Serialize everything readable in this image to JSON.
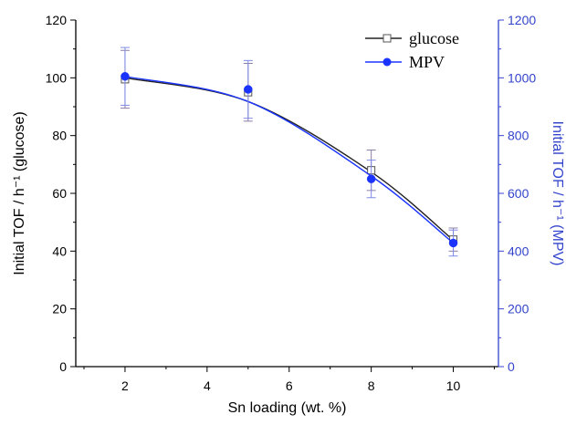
{
  "chart_data": {
    "type": "line",
    "xlabel": "Sn loading (wt. %)",
    "ylabel_left": "Initial TOF / h⁻¹ (glucose)",
    "ylabel_right": "Initial TOF / h⁻¹ (MPV)",
    "xlim": [
      0.8,
      11.1
    ],
    "x_ticks": [
      2,
      4,
      6,
      8,
      10
    ],
    "x_tick_labels": [
      "2",
      "4",
      "6",
      "8",
      "10"
    ],
    "ylim_left": [
      0,
      120
    ],
    "y_ticks_left": [
      0,
      20,
      40,
      60,
      80,
      100,
      120
    ],
    "y_tick_labels_left": [
      "0",
      "20",
      "40",
      "60",
      "80",
      "100",
      "120"
    ],
    "ylim_right": [
      0,
      1200
    ],
    "y_ticks_right": [
      0,
      200,
      400,
      600,
      800,
      1000,
      1200
    ],
    "y_tick_labels_right": [
      "0",
      "200",
      "400",
      "600",
      "800",
      "1000",
      "1200"
    ],
    "right_axis_color": "#3344cc",
    "grid": false,
    "legend_position": "top-right",
    "series": [
      {
        "name": "glucose",
        "axis": "left",
        "marker": "open-square",
        "color": "#222222",
        "x": [
          2,
          5,
          8,
          10
        ],
        "y": [
          99.5,
          95.0,
          68.0,
          44.0
        ],
        "err": [
          10.0,
          10.0,
          7.0,
          4.0
        ],
        "fit": [
          100,
          91.8,
          67.4,
          43.8
        ]
      },
      {
        "name": "MPV",
        "axis": "right",
        "marker": "filled-circle",
        "color": "#1a33ff",
        "x": [
          2,
          5,
          8,
          10
        ],
        "y": [
          1005,
          960,
          650,
          428
        ],
        "err": [
          100,
          100,
          65,
          45
        ],
        "fit": [
          1005,
          918,
          660,
          428
        ]
      }
    ]
  }
}
